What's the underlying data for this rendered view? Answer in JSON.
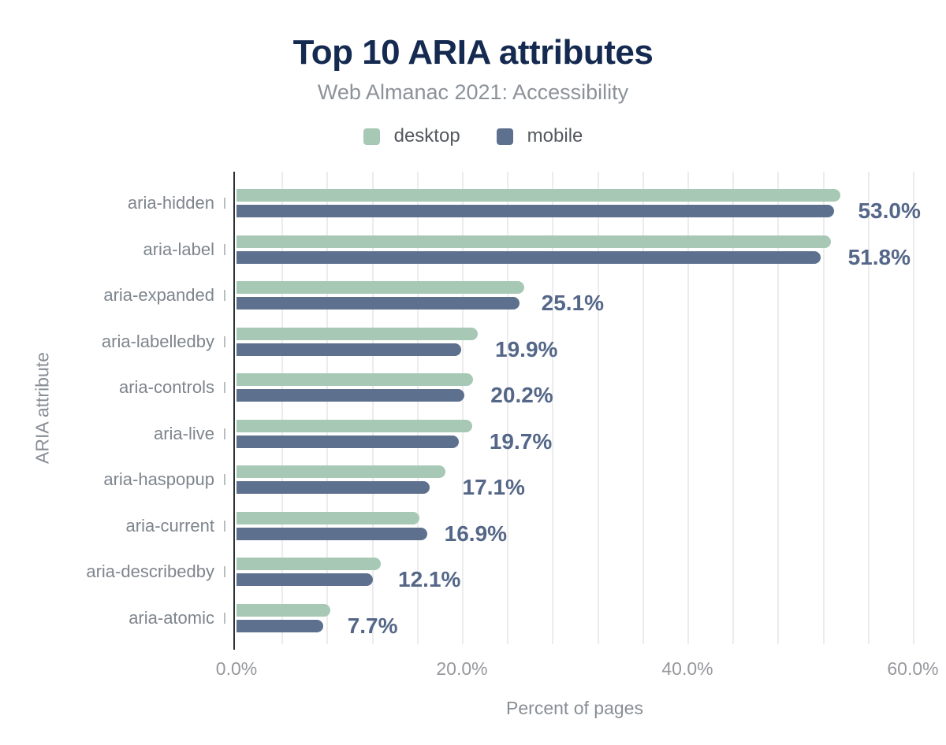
{
  "header": {
    "title": "Top 10 ARIA attributes",
    "subtitle": "Web Almanac 2021: Accessibility"
  },
  "legend": {
    "items": [
      {
        "label": "desktop",
        "color": "#a6c8b5"
      },
      {
        "label": "mobile",
        "color": "#5d708d"
      }
    ]
  },
  "chart_data": {
    "type": "bar",
    "orientation": "horizontal",
    "title": "Top 10 ARIA attributes",
    "subtitle": "Web Almanac 2021: Accessibility",
    "xlabel": "Percent of pages",
    "ylabel": "ARIA attribute",
    "xlim": [
      0,
      60
    ],
    "grid": true,
    "grid_step_pct": 4,
    "legend_position": "top",
    "categories": [
      "aria-hidden",
      "aria-label",
      "aria-expanded",
      "aria-labelledby",
      "aria-controls",
      "aria-live",
      "aria-haspopup",
      "aria-current",
      "aria-describedby",
      "aria-atomic"
    ],
    "series": [
      {
        "name": "desktop",
        "color": "#a6c8b5",
        "values": [
          53.6,
          52.7,
          25.5,
          21.4,
          21.0,
          20.9,
          18.5,
          16.2,
          12.8,
          8.3
        ]
      },
      {
        "name": "mobile",
        "color": "#5d708d",
        "values": [
          53.0,
          51.8,
          25.1,
          19.9,
          20.2,
          19.7,
          17.1,
          16.9,
          12.1,
          7.7
        ]
      }
    ],
    "value_labels": {
      "series": "mobile",
      "texts": [
        "53.0%",
        "51.8%",
        "25.1%",
        "19.9%",
        "20.2%",
        "19.7%",
        "17.1%",
        "16.9%",
        "12.1%",
        "7.7%"
      ]
    },
    "x_ticks": [
      {
        "value": 0,
        "label": "0.0%"
      },
      {
        "value": 20,
        "label": "20.0%"
      },
      {
        "value": 40,
        "label": "40.0%"
      },
      {
        "value": 60,
        "label": "60.0%"
      }
    ]
  },
  "colors": {
    "title": "#152a50",
    "subtitle": "#8c9299",
    "legend_text": "#54585f",
    "category_label": "#7e858d",
    "tick_label": "#96989d",
    "axis_title": "#888e95",
    "value_label": "#556788",
    "axis_line": "#2c3138",
    "gridline": "#ececec",
    "desktop_bar": "#a6c8b5",
    "mobile_bar": "#5d708d",
    "background": "#ffffff"
  }
}
